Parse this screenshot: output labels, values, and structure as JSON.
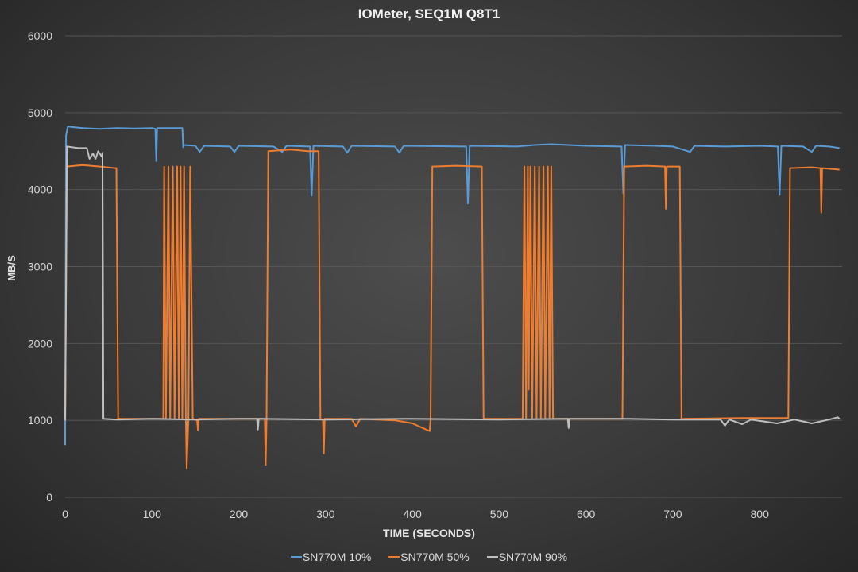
{
  "chart_data": {
    "type": "line",
    "title": "IOMeter, SEQ1M  Q8T1",
    "xlabel": "TIME (SECONDS)",
    "ylabel": "MB/S",
    "xlim": [
      0,
      895
    ],
    "ylim": [
      0,
      6000
    ],
    "xticks": [
      0,
      100,
      200,
      300,
      400,
      500,
      600,
      700,
      800
    ],
    "yticks": [
      0,
      1000,
      2000,
      3000,
      4000,
      5000,
      6000
    ],
    "grid": true,
    "legend_position": "bottom",
    "series": [
      {
        "name": "SN770M 10%",
        "color": "#5b9bd5",
        "points": [
          [
            0,
            680
          ],
          [
            1,
            4700
          ],
          [
            3,
            4820
          ],
          [
            20,
            4800
          ],
          [
            40,
            4790
          ],
          [
            60,
            4800
          ],
          [
            80,
            4795
          ],
          [
            100,
            4800
          ],
          [
            104,
            4790
          ],
          [
            105,
            4370
          ],
          [
            106,
            4800
          ],
          [
            120,
            4800
          ],
          [
            135,
            4800
          ],
          [
            136,
            4550
          ],
          [
            137,
            4580
          ],
          [
            150,
            4570
          ],
          [
            155,
            4490
          ],
          [
            160,
            4570
          ],
          [
            190,
            4560
          ],
          [
            195,
            4490
          ],
          [
            200,
            4570
          ],
          [
            240,
            4560
          ],
          [
            250,
            4490
          ],
          [
            255,
            4570
          ],
          [
            282,
            4560
          ],
          [
            284,
            3920
          ],
          [
            286,
            4570
          ],
          [
            320,
            4560
          ],
          [
            325,
            4480
          ],
          [
            330,
            4570
          ],
          [
            380,
            4560
          ],
          [
            385,
            4480
          ],
          [
            390,
            4570
          ],
          [
            462,
            4560
          ],
          [
            464,
            3820
          ],
          [
            466,
            4570
          ],
          [
            520,
            4560
          ],
          [
            540,
            4580
          ],
          [
            560,
            4590
          ],
          [
            600,
            4570
          ],
          [
            641,
            4560
          ],
          [
            643,
            3950
          ],
          [
            645,
            4580
          ],
          [
            680,
            4570
          ],
          [
            700,
            4560
          ],
          [
            720,
            4490
          ],
          [
            725,
            4570
          ],
          [
            760,
            4560
          ],
          [
            800,
            4570
          ],
          [
            821,
            4560
          ],
          [
            823,
            3930
          ],
          [
            825,
            4570
          ],
          [
            850,
            4560
          ],
          [
            860,
            4490
          ],
          [
            865,
            4570
          ],
          [
            880,
            4560
          ],
          [
            892,
            4540
          ]
        ]
      },
      {
        "name": "SN770M 50%",
        "color": "#ed7d31",
        "points": [
          [
            0,
            1000
          ],
          [
            2,
            4300
          ],
          [
            20,
            4320
          ],
          [
            40,
            4300
          ],
          [
            58,
            4280
          ],
          [
            59,
            4280
          ],
          [
            61,
            1020
          ],
          [
            113,
            1020
          ],
          [
            114,
            4300
          ],
          [
            116,
            1020
          ],
          [
            119,
            4300
          ],
          [
            121,
            1020
          ],
          [
            124,
            4300
          ],
          [
            126,
            1020
          ],
          [
            129,
            4300
          ],
          [
            131,
            1020
          ],
          [
            133,
            4300
          ],
          [
            135,
            1020
          ],
          [
            137,
            4300
          ],
          [
            139,
            1020
          ],
          [
            140,
            380
          ],
          [
            142,
            1020
          ],
          [
            144,
            4300
          ],
          [
            147,
            1020
          ],
          [
            152,
            1000
          ],
          [
            153,
            870
          ],
          [
            154,
            1020
          ],
          [
            230,
            1020
          ],
          [
            231,
            420
          ],
          [
            232,
            1000
          ],
          [
            234,
            4500
          ],
          [
            260,
            4520
          ],
          [
            280,
            4500
          ],
          [
            292,
            4500
          ],
          [
            294,
            1020
          ],
          [
            297,
            1000
          ],
          [
            298,
            570
          ],
          [
            299,
            1020
          ],
          [
            330,
            1020
          ],
          [
            335,
            920
          ],
          [
            340,
            1020
          ],
          [
            380,
            1000
          ],
          [
            400,
            960
          ],
          [
            420,
            860
          ],
          [
            421,
            1020
          ],
          [
            423,
            4300
          ],
          [
            450,
            4310
          ],
          [
            480,
            4300
          ],
          [
            482,
            1020
          ],
          [
            527,
            1020
          ],
          [
            529,
            4300
          ],
          [
            531,
            1020
          ],
          [
            533,
            4300
          ],
          [
            534,
            1400
          ],
          [
            536,
            4300
          ],
          [
            538,
            1020
          ],
          [
            541,
            4300
          ],
          [
            543,
            1020
          ],
          [
            546,
            4300
          ],
          [
            548,
            1020
          ],
          [
            551,
            4300
          ],
          [
            553,
            1020
          ],
          [
            556,
            4300
          ],
          [
            558,
            1020
          ],
          [
            560,
            4300
          ],
          [
            562,
            1020
          ],
          [
            642,
            1020
          ],
          [
            644,
            4300
          ],
          [
            670,
            4310
          ],
          [
            691,
            4300
          ],
          [
            692,
            3750
          ],
          [
            693,
            4300
          ],
          [
            708,
            4300
          ],
          [
            710,
            1020
          ],
          [
            780,
            1030
          ],
          [
            833,
            1030
          ],
          [
            835,
            4280
          ],
          [
            860,
            4290
          ],
          [
            870,
            4280
          ],
          [
            871,
            3700
          ],
          [
            872,
            4280
          ],
          [
            892,
            4260
          ]
        ]
      },
      {
        "name": "SN770M 90%",
        "color": "#bfbfbf",
        "points": [
          [
            0,
            1000
          ],
          [
            2,
            4560
          ],
          [
            15,
            4540
          ],
          [
            25,
            4540
          ],
          [
            28,
            4400
          ],
          [
            32,
            4470
          ],
          [
            35,
            4400
          ],
          [
            38,
            4500
          ],
          [
            42,
            4430
          ],
          [
            43,
            4480
          ],
          [
            44,
            1020
          ],
          [
            60,
            1010
          ],
          [
            100,
            1020
          ],
          [
            150,
            1010
          ],
          [
            200,
            1020
          ],
          [
            221,
            1020
          ],
          [
            222,
            880
          ],
          [
            223,
            1020
          ],
          [
            300,
            1010
          ],
          [
            400,
            1020
          ],
          [
            500,
            1010
          ],
          [
            579,
            1020
          ],
          [
            580,
            900
          ],
          [
            581,
            1020
          ],
          [
            650,
            1020
          ],
          [
            700,
            1010
          ],
          [
            755,
            1010
          ],
          [
            760,
            930
          ],
          [
            765,
            1010
          ],
          [
            780,
            950
          ],
          [
            790,
            1010
          ],
          [
            820,
            960
          ],
          [
            840,
            1010
          ],
          [
            860,
            960
          ],
          [
            880,
            1010
          ],
          [
            890,
            1040
          ],
          [
            892,
            1020
          ]
        ]
      }
    ]
  }
}
